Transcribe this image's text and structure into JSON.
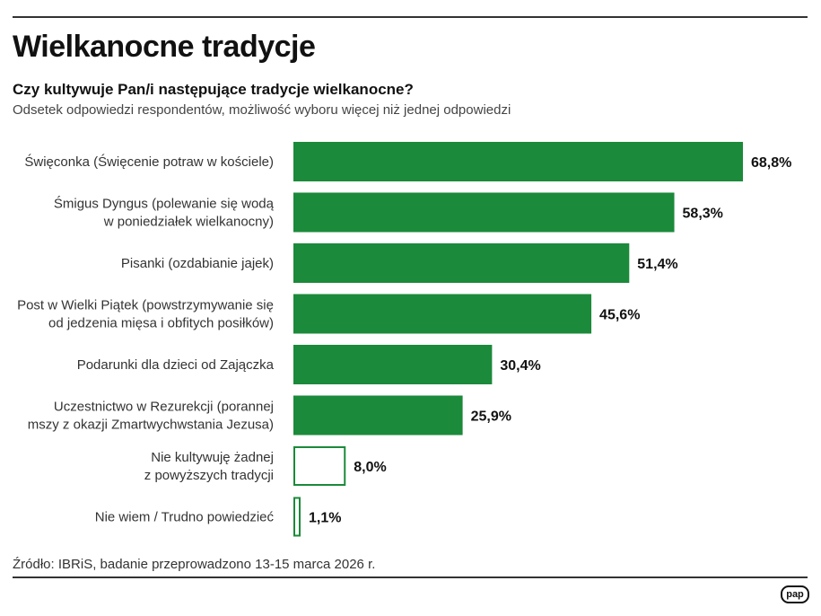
{
  "title": "Wielkanocne tradycje",
  "subtitle": "Czy kultywuje Pan/i następujące tradycje wielkanocne?",
  "description": "Odsetek odpowiedzi respondentów, możliwość wyboru więcej niż jednej odpowiedzi",
  "source": "Źródło: IBRiS, badanie przeprowadzono 13-15 marca 2026 r.",
  "logo": "pap",
  "chart_data": {
    "type": "bar",
    "orientation": "horizontal",
    "categories": [
      [
        "Święconka (Święcenie potraw w kościele)"
      ],
      [
        "Śmigus Dyngus (polewanie się wodą",
        "w poniedziałek wielkanocny)"
      ],
      [
        "Pisanki (ozdabianie jajek)"
      ],
      [
        "Post w Wielki Piątek (powstrzymywanie się",
        "od jedzenia mięsa i obfitych posiłków)"
      ],
      [
        "Podarunki dla dzieci od Zajączka"
      ],
      [
        "Uczestnictwo w Rezurekcji (porannej",
        "mszy z okazji Zmartwychwstania Jezusa)"
      ],
      [
        "Nie kultywuję żadnej",
        "z powyższych tradycji"
      ],
      [
        "Nie wiem / Trudno powiedzieć"
      ]
    ],
    "values": [
      68.8,
      58.3,
      51.4,
      45.6,
      30.4,
      25.9,
      8.0,
      1.1
    ],
    "value_labels": [
      "68,8%",
      "58,3%",
      "51,4%",
      "45,6%",
      "30,4%",
      "25,9%",
      "8,0%",
      "1,1%"
    ],
    "filled": [
      true,
      true,
      true,
      true,
      true,
      true,
      false,
      false
    ],
    "colors": {
      "bar": "#1b8a3a"
    },
    "unit": "%"
  }
}
